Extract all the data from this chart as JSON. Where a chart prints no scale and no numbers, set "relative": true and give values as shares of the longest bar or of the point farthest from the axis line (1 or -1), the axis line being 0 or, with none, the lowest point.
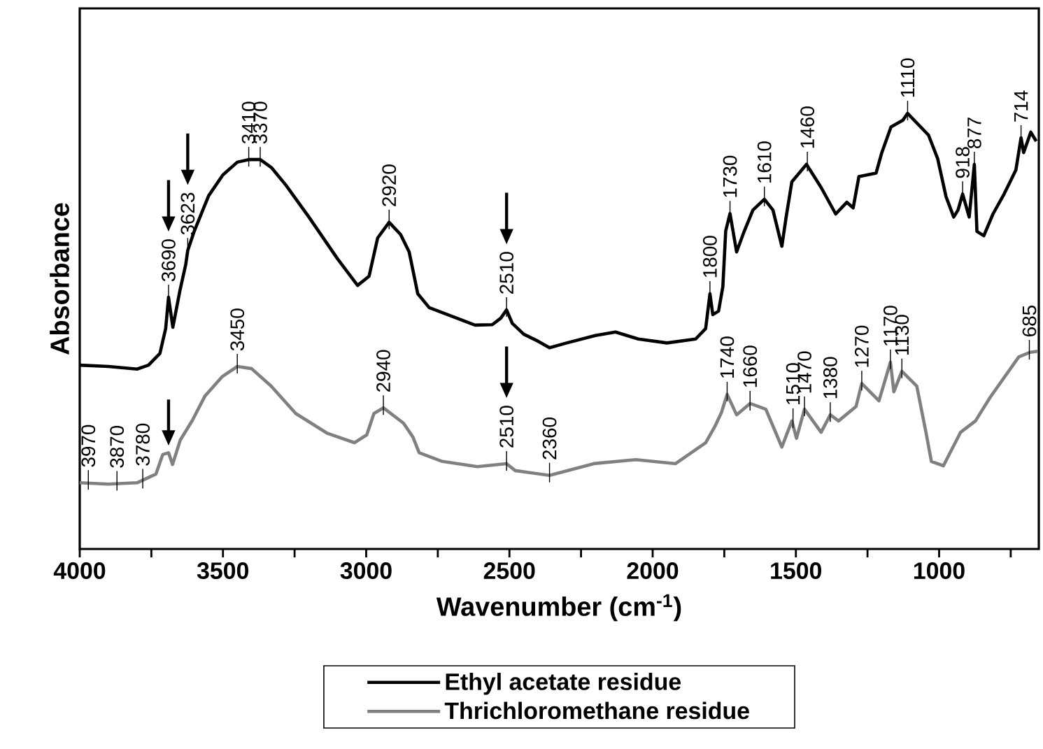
{
  "chart_data": {
    "type": "line",
    "relative": true,
    "xlabel": "Wavenumber (cm$^{-1}$)",
    "ylabel": "Absorbance",
    "xlim": [
      4000,
      652
    ],
    "xticks": [
      4000,
      {
        "value": 3750,
        "label": null
      },
      3500,
      {
        "value": 3250,
        "label": null
      },
      3000,
      {
        "value": 2750,
        "label": null
      },
      2500,
      {
        "value": 2250,
        "label": null
      },
      2000,
      {
        "value": 1750,
        "label": null
      },
      1500,
      {
        "value": 1250,
        "label": null
      },
      1000,
      {
        "value": 750,
        "label": null
      }
    ],
    "legend": "bottom",
    "series": [
      {
        "name": "Ethyl acetate residue",
        "color": "#000000",
        "x": [
          4000,
          3900,
          3800,
          3760,
          3720,
          3700,
          3690,
          3675,
          3650,
          3630,
          3623,
          3600,
          3550,
          3500,
          3450,
          3410,
          3370,
          3330,
          3280,
          3200,
          3100,
          3030,
          2990,
          2960,
          2920,
          2880,
          2850,
          2820,
          2780,
          2700,
          2620,
          2560,
          2530,
          2510,
          2490,
          2450,
          2400,
          2360,
          2300,
          2200,
          2130,
          2050,
          1950,
          1850,
          1815,
          1800,
          1790,
          1770,
          1755,
          1745,
          1730,
          1707,
          1680,
          1650,
          1610,
          1580,
          1549,
          1534,
          1514,
          1463,
          1412,
          1361,
          1322,
          1300,
          1280,
          1220,
          1200,
          1168,
          1127,
          1110,
          1037,
          1005,
          976,
          949,
          934,
          918,
          895,
          877,
          868,
          844,
          812,
          773,
          732,
          714,
          705,
          680,
          661
        ],
        "values": [
          0.422,
          0.419,
          0.413,
          0.422,
          0.449,
          0.506,
          0.578,
          0.509,
          0.594,
          0.653,
          0.685,
          0.73,
          0.811,
          0.859,
          0.888,
          0.894,
          0.894,
          0.875,
          0.835,
          0.762,
          0.666,
          0.605,
          0.626,
          0.714,
          0.75,
          0.722,
          0.682,
          0.586,
          0.554,
          0.534,
          0.514,
          0.515,
          0.53,
          0.549,
          0.518,
          0.493,
          0.477,
          0.462,
          0.473,
          0.49,
          0.498,
          0.482,
          0.473,
          0.482,
          0.506,
          0.586,
          0.538,
          0.546,
          0.602,
          0.73,
          0.77,
          0.682,
          0.73,
          0.778,
          0.803,
          0.778,
          0.695,
          0.762,
          0.843,
          0.883,
          0.83,
          0.769,
          0.796,
          0.783,
          0.855,
          0.863,
          0.91,
          0.969,
          0.984,
          1,
          0.95,
          0.896,
          0.809,
          0.762,
          0.778,
          0.815,
          0.762,
          0.883,
          0.729,
          0.719,
          0.769,
          0.815,
          0.87,
          0.944,
          0.91,
          0.957,
          0.936
        ]
      },
      {
        "name": "Thrichloromethane residue",
        "color": "#808080",
        "x": [
          4000,
          3900,
          3800,
          3734,
          3710,
          3690,
          3676,
          3649,
          3607,
          3563,
          3502,
          3450,
          3400,
          3332,
          3246,
          3137,
          3041,
          2998,
          2973,
          2940,
          2870,
          2837,
          2815,
          2734,
          2612,
          2510,
          2480,
          2360,
          2205,
          2059,
          1920,
          1815,
          1783,
          1760,
          1740,
          1707,
          1660,
          1605,
          1549,
          1514,
          1498,
          1470,
          1412,
          1380,
          1351,
          1290,
          1270,
          1210,
          1170,
          1158,
          1130,
          1078,
          1046,
          1027,
          985,
          925,
          873,
          822,
          722,
          685,
          656
        ],
        "values": [
          0.152,
          0.149,
          0.152,
          0.172,
          0.217,
          0.221,
          0.194,
          0.25,
          0.295,
          0.351,
          0.396,
          0.419,
          0.414,
          0.374,
          0.311,
          0.266,
          0.244,
          0.262,
          0.311,
          0.324,
          0.289,
          0.257,
          0.221,
          0.201,
          0.189,
          0.196,
          0.18,
          0.169,
          0.196,
          0.205,
          0.196,
          0.244,
          0.281,
          0.313,
          0.355,
          0.308,
          0.334,
          0.321,
          0.234,
          0.294,
          0.254,
          0.321,
          0.268,
          0.308,
          0.294,
          0.327,
          0.38,
          0.34,
          0.429,
          0.361,
          0.408,
          0.374,
          0.268,
          0.201,
          0.191,
          0.268,
          0.294,
          0.348,
          0.441,
          0.451,
          0.454
        ]
      }
    ],
    "annotations": [
      {
        "text": "3690",
        "x": 3690,
        "y": 0.578
      },
      {
        "text": "3623",
        "x": 3623,
        "y": 0.685
      },
      {
        "text": "3410",
        "x": 3410,
        "y": 0.894
      },
      {
        "text": "3370",
        "x": 3370,
        "y": 0.894
      },
      {
        "text": "2920",
        "x": 2920,
        "y": 0.75
      },
      {
        "text": "2510",
        "x": 2510,
        "y": 0.549
      },
      {
        "text": "1800",
        "x": 1800,
        "y": 0.586
      },
      {
        "text": "1730",
        "x": 1730,
        "y": 0.77
      },
      {
        "text": "1610",
        "x": 1610,
        "y": 0.803
      },
      {
        "text": "1460",
        "x": 1460,
        "y": 0.883
      },
      {
        "text": "1110",
        "x": 1110,
        "y": 1
      },
      {
        "text": "918",
        "x": 918,
        "y": 0.815
      },
      {
        "text": "877",
        "x": 877,
        "y": 0.883
      },
      {
        "text": "714",
        "x": 714,
        "y": 0.944
      },
      {
        "text": "3970",
        "x": 3970,
        "y": 0.152
      },
      {
        "text": "3870",
        "x": 3870,
        "y": 0.15
      },
      {
        "text": "3780",
        "x": 3780,
        "y": 0.155
      },
      {
        "text": "3450",
        "x": 3450,
        "y": 0.419
      },
      {
        "text": "2940",
        "x": 2940,
        "y": 0.324
      },
      {
        "text": "2510",
        "x": 2510,
        "y": 0.196
      },
      {
        "text": "2360",
        "x": 2360,
        "y": 0.169
      },
      {
        "text": "1740",
        "x": 1740,
        "y": 0.355
      },
      {
        "text": "1660",
        "x": 1660,
        "y": 0.334
      },
      {
        "text": "1510",
        "x": 1510,
        "y": 0.294
      },
      {
        "text": "1470",
        "x": 1470,
        "y": 0.321
      },
      {
        "text": "1380",
        "x": 1380,
        "y": 0.308
      },
      {
        "text": "1270",
        "x": 1270,
        "y": 0.38
      },
      {
        "text": "1170",
        "x": 1170,
        "y": 0.429
      },
      {
        "text": "1130",
        "x": 1130,
        "y": 0.408
      },
      {
        "text": "685",
        "x": 685,
        "y": 0.451
      }
    ]
  }
}
